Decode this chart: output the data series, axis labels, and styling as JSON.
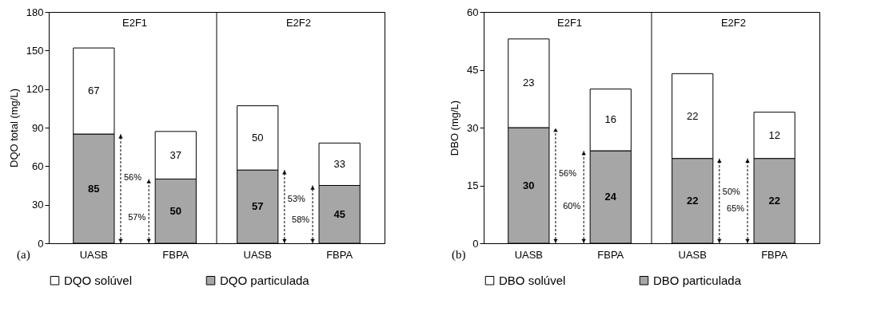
{
  "chart_data": [
    {
      "type": "bar",
      "stacked": true,
      "categories": [
        "UASB",
        "FBPA",
        "UASB",
        "FBPA"
      ],
      "ylabel": "DQO total  (mg/L)",
      "ylim": [
        0,
        180
      ],
      "yticks": [
        0,
        30,
        60,
        90,
        120,
        150,
        180
      ],
      "data_labels": true,
      "legend": "bottom",
      "grid": false,
      "series": [
        {
          "name": "DQO particulada",
          "color": "#a6a6a6",
          "values": [
            85,
            50,
            57,
            45
          ]
        },
        {
          "name": "DQO solúvel",
          "color": "#ffffff",
          "values": [
            67,
            37,
            50,
            33
          ]
        }
      ],
      "annotations": [
        "(a)",
        "E2F1",
        "E2F2",
        "56%",
        "57%",
        "53%",
        "58%"
      ]
    },
    {
      "type": "bar",
      "stacked": true,
      "categories": [
        "UASB",
        "FBPA",
        "UASB",
        "FBPA"
      ],
      "ylabel": "DBO (mg/L)",
      "ylim": [
        0,
        60
      ],
      "yticks": [
        0,
        15,
        30,
        45,
        60
      ],
      "data_labels": true,
      "legend": "bottom",
      "grid": false,
      "series": [
        {
          "name": "DBO particulada",
          "color": "#a6a6a6",
          "values": [
            30,
            24,
            22,
            22
          ]
        },
        {
          "name": "DBO solúvel",
          "color": "#ffffff",
          "values": [
            23,
            16,
            22,
            12
          ]
        }
      ],
      "annotations": [
        "(b)",
        "E2F1",
        "E2F2",
        "56%",
        "60%",
        "50%",
        "65%"
      ]
    }
  ]
}
